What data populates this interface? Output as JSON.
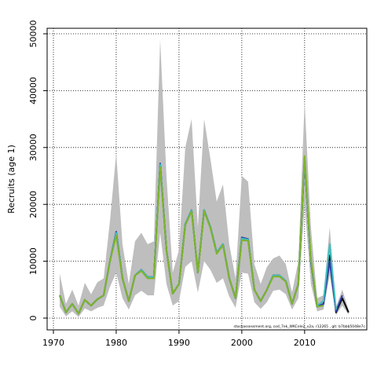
{
  "chart_data": {
    "type": "line",
    "ylabel": "Recruits (age 1)",
    "footnote": "stockassessment.org, cod_7ek_WKCele2_v2a, r12265 , git: b7bbb5048e7c",
    "x": [
      1971,
      1972,
      1973,
      1974,
      1975,
      1976,
      1977,
      1978,
      1979,
      1980,
      1981,
      1982,
      1983,
      1984,
      1985,
      1986,
      1987,
      1988,
      1989,
      1990,
      1991,
      1992,
      1993,
      1994,
      1995,
      1996,
      1997,
      1998,
      1999,
      2000,
      2001,
      2002,
      2003,
      2004,
      2005,
      2006,
      2007,
      2008,
      2009,
      2010,
      2011,
      2012,
      2013,
      2014,
      2015,
      2016,
      2017
    ],
    "band": {
      "color": "#bebebe",
      "upper": [
        7800,
        2500,
        5000,
        2200,
        6200,
        4200,
        6300,
        7000,
        17000,
        29000,
        13000,
        6000,
        13500,
        15000,
        13000,
        13500,
        49000,
        25000,
        8000,
        12000,
        30000,
        35000,
        16000,
        35000,
        28000,
        20500,
        23500,
        13000,
        7000,
        25000,
        24000,
        9500,
        6000,
        9000,
        10500,
        11000,
        9500,
        4500,
        10000,
        38000,
        16000,
        3500,
        4000,
        16000,
        2000,
        5000,
        1500
      ],
      "lower": [
        2000,
        300,
        1200,
        200,
        1700,
        1200,
        1800,
        2200,
        5500,
        8000,
        3500,
        1500,
        4000,
        4800,
        4000,
        4000,
        15000,
        6000,
        2200,
        3000,
        9000,
        10000,
        4500,
        10000,
        8500,
        6200,
        7000,
        3800,
        1800,
        8000,
        7800,
        2800,
        1600,
        2800,
        4800,
        5000,
        4200,
        1500,
        3500,
        20000,
        6000,
        1200,
        1500,
        7500,
        500,
        2200,
        600
      ]
    },
    "series": [
      {
        "color": "#000000",
        "values": [
          4000,
          1000,
          2500,
          800,
          3200,
          2200,
          3300,
          4000,
          10000,
          15000,
          7000,
          3000,
          7500,
          8500,
          7200,
          7200,
          27000,
          12000,
          4300,
          6000,
          16500,
          19000,
          8000,
          19000,
          16000,
          11500,
          13000,
          7000,
          3500,
          14000,
          13800,
          5000,
          3000,
          5000,
          7500,
          7500,
          6500,
          2500,
          6000,
          28000,
          10000,
          2000,
          2500,
          11000,
          1000,
          3500,
          1000
        ]
      },
      {
        "color": "#2c3fa8",
        "values": [
          4000,
          1000,
          2500,
          800,
          3200,
          2200,
          3300,
          4000,
          10000,
          15200,
          7000,
          3000,
          7500,
          8500,
          7200,
          7200,
          27200,
          12000,
          4300,
          6000,
          16500,
          19000,
          8000,
          19000,
          16000,
          11500,
          13000,
          7000,
          3500,
          14200,
          13900,
          5000,
          3000,
          5000,
          7500,
          7500,
          6500,
          2500,
          6000,
          28000,
          10000,
          2000,
          2500,
          10000,
          1200,
          4000,
          null
        ]
      },
      {
        "color": "#3fbfbf",
        "values": [
          4000,
          1000,
          2500,
          800,
          3200,
          2200,
          3300,
          4000,
          10000,
          15000,
          7000,
          3000,
          7500,
          8500,
          7200,
          7200,
          27000,
          12000,
          4300,
          6000,
          16500,
          19000,
          8000,
          19000,
          16000,
          11500,
          13000,
          7000,
          3500,
          14000,
          13800,
          5000,
          3000,
          5000,
          7500,
          7500,
          6500,
          2500,
          6000,
          28200,
          10200,
          2200,
          3000,
          13000,
          1500,
          null,
          null
        ]
      },
      {
        "color": "#7fb32a",
        "values": [
          4000,
          1000,
          2500,
          800,
          3200,
          2200,
          3300,
          4000,
          10000,
          14500,
          7000,
          3000,
          7500,
          8300,
          7000,
          7000,
          26500,
          12000,
          4300,
          6000,
          16300,
          18800,
          8000,
          18800,
          15800,
          11300,
          12800,
          7000,
          3500,
          13700,
          13600,
          5000,
          3000,
          5000,
          7300,
          7300,
          6400,
          2500,
          6000,
          28500,
          10500,
          2000,
          2200,
          null,
          null,
          null,
          null
        ]
      }
    ],
    "xlim": [
      1969,
      2019.9
    ],
    "ylim": [
      -2070,
      50967
    ],
    "xticks": [
      1970,
      1980,
      1990,
      2000,
      2010
    ],
    "yticks": [
      0,
      10000,
      20000,
      30000,
      40000,
      50000
    ],
    "grid": true
  }
}
